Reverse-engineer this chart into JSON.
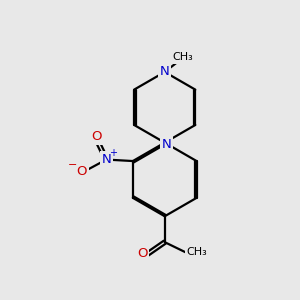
{
  "background_color": "#e8e8e8",
  "bond_color": "#000000",
  "nitrogen_color": "#0000cc",
  "oxygen_color": "#cc0000",
  "line_width": 1.6,
  "dbo": 0.055,
  "figsize": [
    3.0,
    3.0
  ],
  "dpi": 100,
  "xlim": [
    0,
    10
  ],
  "ylim": [
    0,
    10
  ]
}
